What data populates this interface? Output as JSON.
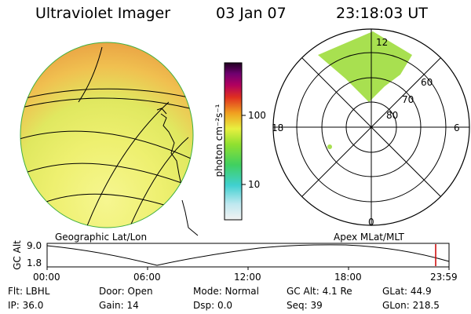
{
  "header": {
    "instrument": "Ultraviolet Imager",
    "date": "03 Jan 07",
    "time": "23:18:03 UT"
  },
  "colorbar": {
    "unit_label": "photon cm⁻²s⁻¹",
    "tick_100": "100",
    "tick_10": "10",
    "scale": "log"
  },
  "geo_panel": {
    "caption": "Geographic Lat/Lon"
  },
  "polar_panel": {
    "caption": "Apex MLat/MLT",
    "mlt_top": "12",
    "mlt_left": "18",
    "mlt_right": "6",
    "mlt_bottom": "0",
    "lat_60": "60",
    "lat_70": "70",
    "lat_80": "80"
  },
  "altitude_plot": {
    "ylabel": "GC Alt",
    "ytick_top": "9.0",
    "ytick_bottom": "1.8",
    "xticks": [
      "00:00",
      "06:00",
      "12:00",
      "18:00",
      "23:59"
    ],
    "marker_color": "#cc0000"
  },
  "status": {
    "flt": "Flt: LBHL",
    "ip": "IP: 36.0",
    "door": "Door: Open",
    "gain": "Gain: 14",
    "mode": "Mode: Normal",
    "dsp": "Dsp:       0.0",
    "gc_alt": "GC Alt: 4.1 Re",
    "seq": "Seq: 39",
    "glat": "GLat:    44.9",
    "glon": "GLon: 218.5"
  }
}
